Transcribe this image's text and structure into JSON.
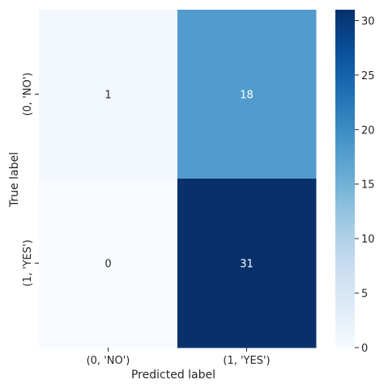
{
  "chart_data": {
    "type": "heatmap",
    "title": "",
    "xlabel": "Predicted label",
    "ylabel": "True label",
    "x_categories": [
      "(0, 'NO')",
      "(1, 'YES')"
    ],
    "y_categories": [
      "(0, 'NO')",
      "(1, 'YES')"
    ],
    "values": [
      [
        1,
        18
      ],
      [
        0,
        31
      ]
    ],
    "colormap": "Blues",
    "color_low": "#f7fbff",
    "color_high": "#08306b",
    "vmin": 0,
    "vmax": 31,
    "colorbar_ticks": [
      0,
      5,
      10,
      15,
      20,
      25,
      30
    ],
    "grid": false,
    "legend": "colorbar-right"
  }
}
